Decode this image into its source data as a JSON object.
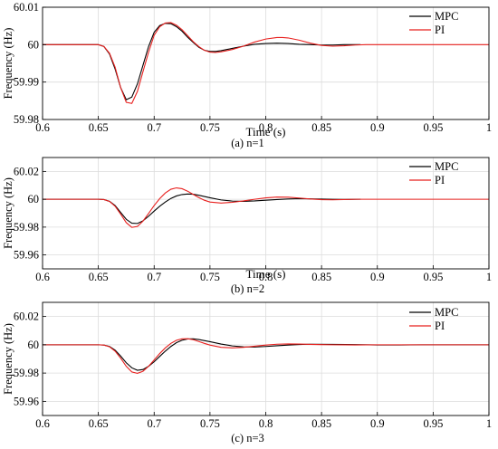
{
  "chart_data": [
    {
      "type": "line",
      "caption": "(a) n=1",
      "xlabel": "Time (s)",
      "ylabel": "Frequency (Hz)",
      "xlim": [
        0.6,
        1.0
      ],
      "ylim": [
        59.98,
        60.01
      ],
      "x_ticks": [
        0.6,
        0.65,
        0.7,
        0.75,
        0.8,
        0.85,
        0.9,
        0.95,
        1.0
      ],
      "x_tick_labels": [
        "0.6",
        "0.65",
        "0.7",
        "0.75",
        "0.8",
        "0.85",
        "0.9",
        "0.95",
        "1"
      ],
      "y_ticks": [
        59.98,
        59.99,
        60.0,
        60.01
      ],
      "y_tick_labels": [
        "59.98",
        "59.99",
        "60",
        "60.01"
      ],
      "grid": true,
      "legend_position": "top-right",
      "series": [
        {
          "name": "MPC",
          "color": "#000000",
          "x": [
            0.6,
            0.64,
            0.65,
            0.655,
            0.66,
            0.665,
            0.67,
            0.675,
            0.68,
            0.685,
            0.69,
            0.695,
            0.7,
            0.705,
            0.71,
            0.715,
            0.72,
            0.725,
            0.73,
            0.735,
            0.74,
            0.745,
            0.75,
            0.755,
            0.76,
            0.765,
            0.77,
            0.78,
            0.79,
            0.8,
            0.81,
            0.82,
            0.83,
            0.84,
            0.85,
            0.86,
            0.87,
            0.885
          ],
          "y": [
            60.0,
            60.0,
            60.0,
            59.9995,
            59.9975,
            59.9935,
            59.9885,
            59.9853,
            59.986,
            59.9895,
            59.9945,
            59.9995,
            60.0033,
            60.0051,
            60.0057,
            60.0056,
            60.0048,
            60.0036,
            60.002,
            60.0006,
            59.9993,
            59.9985,
            59.9982,
            59.9982,
            59.9984,
            59.9987,
            59.999,
            59.9996,
            60.0001,
            60.0003,
            60.0004,
            60.0003,
            60.0001,
            60.0,
            59.9999,
            59.9999,
            60.0,
            60.0
          ]
        },
        {
          "name": "PI",
          "color": "#e8201e",
          "x": [
            0.6,
            0.64,
            0.65,
            0.655,
            0.66,
            0.665,
            0.67,
            0.675,
            0.68,
            0.685,
            0.69,
            0.695,
            0.7,
            0.705,
            0.71,
            0.715,
            0.72,
            0.725,
            0.73,
            0.735,
            0.74,
            0.745,
            0.75,
            0.755,
            0.76,
            0.77,
            0.78,
            0.79,
            0.8,
            0.81,
            0.815,
            0.82,
            0.83,
            0.84,
            0.85,
            0.86,
            0.87,
            0.88,
            0.89,
            1.0
          ],
          "y": [
            60.0,
            60.0,
            60.0,
            59.9995,
            59.9977,
            59.994,
            59.9885,
            59.9846,
            59.9843,
            59.9875,
            59.9928,
            59.998,
            60.0025,
            60.0048,
            60.0058,
            60.0059,
            60.0052,
            60.004,
            60.0024,
            60.0008,
            59.9995,
            59.9985,
            59.998,
            59.9979,
            59.9981,
            59.9987,
            59.9996,
            60.0007,
            60.0015,
            60.0019,
            60.0019,
            60.0018,
            60.0012,
            60.0004,
            59.9998,
            59.9996,
            59.9997,
            59.9999,
            60.0,
            60.0
          ]
        }
      ]
    },
    {
      "type": "line",
      "caption": "(b) n=2",
      "xlabel": "Time (s)",
      "ylabel": "Frequency (Hz)",
      "xlim": [
        0.6,
        1.0
      ],
      "ylim": [
        59.95,
        60.03
      ],
      "x_ticks": [
        0.6,
        0.65,
        0.7,
        0.75,
        0.8,
        0.85,
        0.9,
        0.95,
        1.0
      ],
      "x_tick_labels": [
        "0.6",
        "0.65",
        "0.7",
        "0.75",
        "0.8",
        "0.85",
        "0.9",
        "0.95",
        "1"
      ],
      "y_ticks": [
        59.96,
        59.98,
        60.0,
        60.02
      ],
      "y_tick_labels": [
        "59.96",
        "59.98",
        "60",
        "60.02"
      ],
      "grid": true,
      "legend_position": "top-right",
      "series": [
        {
          "name": "MPC",
          "color": "#000000",
          "x": [
            0.6,
            0.64,
            0.65,
            0.655,
            0.66,
            0.665,
            0.67,
            0.675,
            0.68,
            0.685,
            0.69,
            0.695,
            0.7,
            0.705,
            0.71,
            0.715,
            0.72,
            0.725,
            0.73,
            0.735,
            0.74,
            0.75,
            0.76,
            0.77,
            0.78,
            0.79,
            0.8,
            0.81,
            0.82,
            0.83,
            0.84,
            0.85,
            0.86,
            0.87,
            0.885
          ],
          "y": [
            60.0,
            60.0,
            60.0,
            59.9998,
            59.9985,
            59.9955,
            59.9905,
            59.9856,
            59.9828,
            59.9826,
            59.9845,
            59.9878,
            59.9915,
            59.995,
            59.998,
            60.0006,
            60.0024,
            60.0034,
            60.0038,
            60.0036,
            60.0029,
            60.0011,
            59.9995,
            59.9987,
            59.9985,
            59.9988,
            59.9993,
            59.9998,
            60.0002,
            60.0004,
            60.0003,
            60.0001,
            60.0,
            59.9999,
            60.0
          ]
        },
        {
          "name": "PI",
          "color": "#e8201e",
          "x": [
            0.6,
            0.64,
            0.65,
            0.655,
            0.66,
            0.665,
            0.67,
            0.675,
            0.68,
            0.685,
            0.69,
            0.695,
            0.7,
            0.705,
            0.71,
            0.715,
            0.72,
            0.725,
            0.73,
            0.735,
            0.74,
            0.745,
            0.75,
            0.76,
            0.77,
            0.78,
            0.79,
            0.8,
            0.81,
            0.82,
            0.83,
            0.84,
            0.85,
            0.86,
            0.87,
            0.88,
            0.89,
            1.0
          ],
          "y": [
            60.0,
            60.0,
            60.0,
            59.9998,
            59.9985,
            59.995,
            59.9893,
            59.9832,
            59.9798,
            59.9805,
            59.9843,
            59.9898,
            59.9955,
            60.0005,
            60.0045,
            60.0072,
            60.0082,
            60.0076,
            60.0058,
            60.0035,
            60.0012,
            59.9993,
            59.998,
            59.9973,
            59.9978,
            59.9988,
            60.0,
            60.001,
            60.0016,
            60.0015,
            60.0009,
            60.0002,
            59.9997,
            59.9996,
            59.9998,
            60.0,
            60.0,
            60.0
          ]
        }
      ]
    },
    {
      "type": "line",
      "caption": "(c) n=3",
      "xlabel": "",
      "ylabel": "Frequency (Hz)",
      "xlim": [
        0.6,
        1.0
      ],
      "ylim": [
        59.95,
        60.03
      ],
      "x_ticks": [
        0.6,
        0.65,
        0.7,
        0.75,
        0.8,
        0.85,
        0.9,
        0.95,
        1.0
      ],
      "x_tick_labels": [
        "0.6",
        "0.65",
        "0.7",
        "0.75",
        "0.8",
        "0.85",
        "0.9",
        "0.95",
        "1"
      ],
      "y_ticks": [
        59.96,
        59.98,
        60.0,
        60.02
      ],
      "y_tick_labels": [
        "59.96",
        "59.98",
        "60",
        "60.02"
      ],
      "grid": true,
      "legend_position": "top-right",
      "series": [
        {
          "name": "MPC",
          "color": "#000000",
          "x": [
            0.6,
            0.64,
            0.65,
            0.655,
            0.66,
            0.665,
            0.67,
            0.675,
            0.68,
            0.685,
            0.69,
            0.695,
            0.7,
            0.705,
            0.71,
            0.715,
            0.72,
            0.725,
            0.73,
            0.735,
            0.74,
            0.75,
            0.76,
            0.77,
            0.78,
            0.79,
            0.8,
            0.81,
            0.82,
            0.83,
            0.84,
            0.86,
            0.88,
            0.9,
            0.92,
            0.94,
            1.0
          ],
          "y": [
            60.0,
            60.0,
            60.0,
            59.9998,
            59.9988,
            59.9962,
            59.992,
            59.9873,
            59.9837,
            59.982,
            59.9825,
            59.9848,
            59.988,
            59.9918,
            59.9955,
            59.9988,
            60.0015,
            60.0032,
            60.0041,
            60.0042,
            60.0037,
            60.0022,
            60.0005,
            59.9992,
            59.9985,
            59.9984,
            59.9988,
            59.9993,
            59.9998,
            60.0002,
            60.0004,
            60.0003,
            60.0001,
            59.9999,
            59.9999,
            60.0,
            60.0
          ]
        },
        {
          "name": "PI",
          "color": "#e8201e",
          "x": [
            0.6,
            0.64,
            0.65,
            0.655,
            0.66,
            0.665,
            0.67,
            0.675,
            0.68,
            0.685,
            0.69,
            0.695,
            0.7,
            0.705,
            0.71,
            0.715,
            0.72,
            0.725,
            0.73,
            0.735,
            0.74,
            0.745,
            0.75,
            0.76,
            0.77,
            0.78,
            0.79,
            0.8,
            0.81,
            0.82,
            0.83,
            0.84,
            0.85,
            0.86,
            0.88,
            0.9,
            1.0
          ],
          "y": [
            60.0,
            60.0,
            60.0,
            59.9998,
            59.9986,
            59.9955,
            59.9905,
            59.9848,
            59.9808,
            59.9798,
            59.9813,
            59.9848,
            59.9893,
            59.9938,
            59.9978,
            60.001,
            60.0032,
            60.0042,
            60.0043,
            60.0036,
            60.0023,
            60.001,
            59.9998,
            59.9982,
            59.9978,
            59.9982,
            59.999,
            59.9998,
            60.0004,
            60.0006,
            60.0005,
            60.0003,
            60.0001,
            60.0,
            59.9999,
            60.0,
            60.0
          ]
        }
      ]
    }
  ]
}
